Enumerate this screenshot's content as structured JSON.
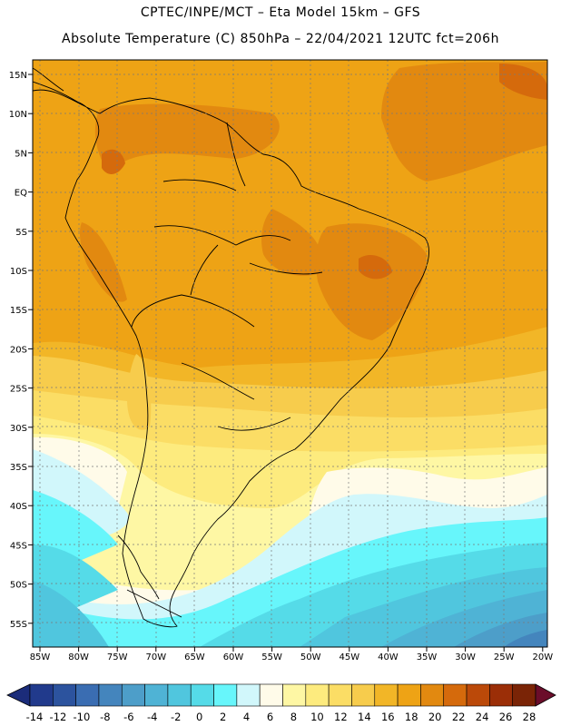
{
  "header": {
    "line1": "CPTEC/INPE/MCT –  Eta Model 15km – GFS",
    "line2": "Absolute Temperature (C) 850hPa – 22/04/2021 12UTC fct=206h"
  },
  "axes": {
    "lon_labels": [
      "85W",
      "80W",
      "75W",
      "70W",
      "65W",
      "60W",
      "55W",
      "50W",
      "45W",
      "40W",
      "35W",
      "30W",
      "25W",
      "20W"
    ],
    "lat_labels": [
      "15N",
      "10N",
      "5N",
      "EQ",
      "5S",
      "10S",
      "15S",
      "20S",
      "25S",
      "30S",
      "35S",
      "40S",
      "45S",
      "50S",
      "55S"
    ]
  },
  "colorbar": {
    "labels": [
      "-14",
      "-12",
      "-10",
      "-8",
      "-6",
      "-4",
      "-2",
      "0",
      "2",
      "4",
      "6",
      "8",
      "10",
      "12",
      "14",
      "16",
      "18",
      "20",
      "22",
      "24",
      "26",
      "28"
    ],
    "colors": [
      "#213a8c",
      "#2c539e",
      "#3a6db2",
      "#4485bd",
      "#4d9ec9",
      "#4fb3d5",
      "#50c6de",
      "#55dbe8",
      "#67f6fb",
      "#d1f7fb",
      "#fffbe9",
      "#fef7a4",
      "#fdeb7e",
      "#fbdd65",
      "#f7cc4c",
      "#f2b627",
      "#eea315",
      "#e28910",
      "#d56a0c",
      "#bb4909",
      "#9b2e07",
      "#7a2406"
    ],
    "under_color": "#1b2c7a",
    "over_color": "#6b0d2a"
  },
  "map": {
    "region": "South America",
    "lon_range": [
      -86,
      -19
    ],
    "lat_range": [
      -58,
      16.5
    ]
  }
}
